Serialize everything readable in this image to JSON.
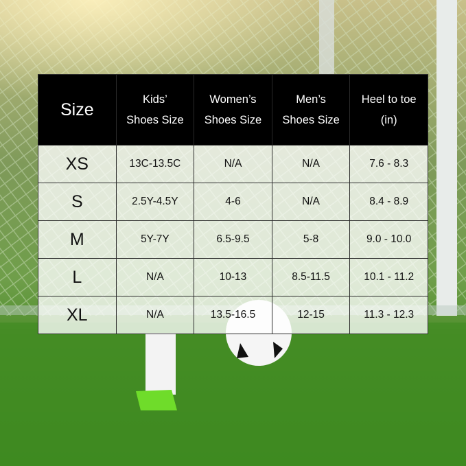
{
  "table": {
    "header": [
      [
        "Size"
      ],
      [
        "Kids’",
        "Shoes Size"
      ],
      [
        "Women’s",
        "Shoes Size"
      ],
      [
        "Men’s",
        "Shoes Size"
      ],
      [
        "Heel to toe",
        "(in)"
      ]
    ],
    "rows": [
      [
        "XS",
        "13C-13.5C",
        "N/A",
        "N/A",
        "7.6 - 8.3"
      ],
      [
        "S",
        "2.5Y-4.5Y",
        "4-6",
        "N/A",
        "8.4 - 8.9"
      ],
      [
        "M",
        "5Y-7Y",
        "6.5-9.5",
        "5-8",
        "9.0 - 10.0"
      ],
      [
        "L",
        "N/A",
        "10-13",
        "8.5-11.5",
        "10.1 - 11.2"
      ],
      [
        "XL",
        "N/A",
        "13.5-16.5",
        "12-15",
        "11.3 - 12.3"
      ]
    ]
  }
}
